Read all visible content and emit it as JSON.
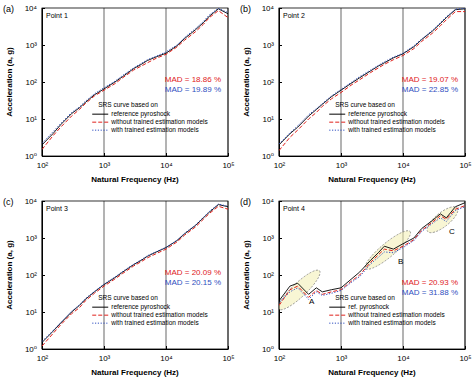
{
  "chart_data": [
    {
      "type": "line",
      "panel_label": "(a)",
      "title": "Point 1",
      "xlabel": "Natural Frequency (Hz)",
      "ylabel": "Acceleration (a, g)",
      "log": true,
      "grid": "x",
      "legend": "lower right",
      "legend_title": "SRS curve based on",
      "xlim": [
        100,
        100000
      ],
      "ylim": [
        1,
        10000
      ],
      "xticks": [
        {
          "value": 100,
          "label": "10²"
        },
        {
          "value": 1000,
          "label": "10³"
        },
        {
          "value": 10000,
          "label": "10⁴"
        },
        {
          "value": 100000,
          "label": "10⁵"
        }
      ],
      "yticks": [
        {
          "value": 1,
          "label": "10⁰"
        },
        {
          "value": 10,
          "label": "10¹"
        },
        {
          "value": 100,
          "label": "10²"
        },
        {
          "value": 1000,
          "label": "10³"
        },
        {
          "value": 10000,
          "label": "10⁴"
        }
      ],
      "x": [
        100,
        150,
        200,
        300,
        400,
        500,
        700,
        1000,
        1500,
        2000,
        3000,
        4000,
        5000,
        7000,
        10000,
        15000,
        20000,
        30000,
        40000,
        50000,
        70000,
        100000
      ],
      "series": [
        {
          "name": "reference pyroshock",
          "color": "#000000",
          "line_style": "solid",
          "values": [
            2,
            4,
            7,
            14,
            20,
            28,
            45,
            65,
            100,
            140,
            230,
            300,
            380,
            480,
            600,
            950,
            1500,
            2600,
            4000,
            6000,
            9500,
            7000
          ]
        },
        {
          "name": "without trained estimation models",
          "color": "#e0201b",
          "line_style": "dashed",
          "values": [
            1.5,
            3.5,
            6,
            12,
            18,
            26,
            42,
            60,
            90,
            130,
            210,
            270,
            330,
            440,
            560,
            880,
            1350,
            2300,
            3600,
            5500,
            8500,
            5500
          ]
        },
        {
          "name": "with trained estimation models",
          "color": "#2f4fc0",
          "line_style": "dotted",
          "values": [
            2.2,
            4.5,
            7.5,
            15,
            21,
            30,
            48,
            70,
            105,
            150,
            240,
            320,
            400,
            500,
            650,
            1000,
            1600,
            2800,
            4300,
            6500,
            9800,
            7500
          ]
        }
      ],
      "annotations": [
        {
          "text": "MAD = 18.86 %",
          "color": "#e0201b"
        },
        {
          "text": "MAD = 19.89 %",
          "color": "#2f4fc0"
        }
      ]
    },
    {
      "type": "line",
      "panel_label": "(b)",
      "title": "Point 2",
      "xlabel": "Natural Frequency (Hz)",
      "ylabel": "Acceleration (a, g)",
      "log": true,
      "grid": "x",
      "legend": "lower right",
      "legend_title": "SRS curve based on",
      "xlim": [
        100,
        100000
      ],
      "ylim": [
        1,
        10000
      ],
      "xticks": [
        {
          "value": 100,
          "label": "10²"
        },
        {
          "value": 1000,
          "label": "10³"
        },
        {
          "value": 10000,
          "label": "10⁴"
        },
        {
          "value": 100000,
          "label": "10⁵"
        }
      ],
      "yticks": [
        {
          "value": 1,
          "label": "10⁰"
        },
        {
          "value": 10,
          "label": "10¹"
        },
        {
          "value": 100,
          "label": "10²"
        },
        {
          "value": 1000,
          "label": "10³"
        },
        {
          "value": 10000,
          "label": "10⁴"
        }
      ],
      "x": [
        100,
        150,
        200,
        300,
        400,
        500,
        700,
        1000,
        1500,
        2000,
        3000,
        4000,
        5000,
        7000,
        10000,
        15000,
        20000,
        30000,
        40000,
        50000,
        70000,
        100000
      ],
      "series": [
        {
          "name": "reference pyroshock",
          "color": "#000000",
          "line_style": "solid",
          "values": [
            2,
            4,
            6,
            12,
            18,
            25,
            40,
            60,
            95,
            130,
            200,
            270,
            330,
            450,
            580,
            900,
            1400,
            2400,
            3800,
            5500,
            9000,
            9500
          ]
        },
        {
          "name": "without trained estimation models",
          "color": "#e0201b",
          "line_style": "dashed",
          "values": [
            1.4,
            3.2,
            5,
            10,
            15,
            22,
            35,
            52,
            85,
            115,
            180,
            240,
            300,
            400,
            520,
            800,
            1250,
            2100,
            3300,
            4800,
            8000,
            8000
          ]
        },
        {
          "name": "with trained estimation models",
          "color": "#2f4fc0",
          "line_style": "dotted",
          "values": [
            2.1,
            4.2,
            6.5,
            13,
            19,
            26,
            42,
            63,
            100,
            140,
            210,
            280,
            350,
            470,
            600,
            950,
            1450,
            2500,
            4000,
            5800,
            9300,
            9800
          ]
        }
      ],
      "annotations": [
        {
          "text": "MAD = 19.07 %",
          "color": "#e0201b"
        },
        {
          "text": "MAD = 22.85 %",
          "color": "#2f4fc0"
        }
      ]
    },
    {
      "type": "line",
      "panel_label": "(c)",
      "title": "Point 3",
      "xlabel": "Natural Frequency (Hz)",
      "ylabel": "Acceleration (a, g)",
      "log": true,
      "grid": "x",
      "legend": "lower right",
      "legend_title": "SRS curve based on",
      "xlim": [
        100,
        100000
      ],
      "ylim": [
        1,
        10000
      ],
      "xticks": [
        {
          "value": 100,
          "label": "10²"
        },
        {
          "value": 1000,
          "label": "10³"
        },
        {
          "value": 10000,
          "label": "10⁴"
        },
        {
          "value": 100000,
          "label": "10⁵"
        }
      ],
      "yticks": [
        {
          "value": 1,
          "label": "10⁰"
        },
        {
          "value": 10,
          "label": "10¹"
        },
        {
          "value": 100,
          "label": "10²"
        },
        {
          "value": 1000,
          "label": "10³"
        },
        {
          "value": 10000,
          "label": "10⁴"
        }
      ],
      "x": [
        100,
        150,
        200,
        300,
        400,
        500,
        700,
        1000,
        1500,
        2000,
        3000,
        4000,
        5000,
        7000,
        10000,
        15000,
        20000,
        30000,
        40000,
        50000,
        70000,
        100000
      ],
      "series": [
        {
          "name": "reference pyroshock",
          "color": "#000000",
          "line_style": "solid",
          "values": [
            1.5,
            3,
            5,
            10,
            15,
            22,
            35,
            55,
            85,
            120,
            190,
            250,
            320,
            420,
            550,
            850,
            1300,
            2200,
            3500,
            5000,
            8000,
            7000
          ]
        },
        {
          "name": "without trained estimation models",
          "color": "#e0201b",
          "line_style": "dashed",
          "values": [
            1.2,
            2.6,
            4.5,
            9,
            13,
            20,
            32,
            50,
            78,
            110,
            175,
            230,
            290,
            380,
            500,
            780,
            1200,
            2000,
            3200,
            4600,
            7200,
            6000
          ]
        },
        {
          "name": "with trained estimation models",
          "color": "#2f4fc0",
          "line_style": "dotted",
          "values": [
            1.6,
            3.1,
            5.2,
            10.5,
            15.5,
            23,
            36,
            57,
            88,
            125,
            195,
            260,
            330,
            430,
            560,
            870,
            1350,
            2250,
            3600,
            5200,
            8300,
            7200
          ]
        }
      ],
      "annotations": [
        {
          "text": "MAD = 20.09 %",
          "color": "#e0201b"
        },
        {
          "text": "MAD = 20.15 %",
          "color": "#2f4fc0"
        }
      ]
    },
    {
      "type": "line",
      "panel_label": "(d)",
      "title": "Point 4",
      "xlabel": "Natural Frequency (Hz)",
      "ylabel": "Acceleration (a, g)",
      "log": true,
      "grid": "x",
      "legend": "lower right",
      "legend_title": "SRS curve based on",
      "xlim": [
        100,
        100000
      ],
      "ylim": [
        1,
        10000
      ],
      "xticks": [
        {
          "value": 100,
          "label": "10²"
        },
        {
          "value": 1000,
          "label": "10³"
        },
        {
          "value": 10000,
          "label": "10⁴"
        },
        {
          "value": 100000,
          "label": "10⁵"
        }
      ],
      "yticks": [
        {
          "value": 1,
          "label": "10⁰"
        },
        {
          "value": 10,
          "label": "10¹"
        },
        {
          "value": 100,
          "label": "10²"
        },
        {
          "value": 1000,
          "label": "10³"
        },
        {
          "value": 10000,
          "label": "10⁴"
        }
      ],
      "x": [
        100,
        150,
        200,
        300,
        400,
        500,
        700,
        1000,
        1500,
        2000,
        3000,
        4000,
        5000,
        7000,
        10000,
        15000,
        20000,
        30000,
        40000,
        50000,
        70000,
        100000
      ],
      "series": [
        {
          "name": "ref. pyroshock",
          "color": "#000000",
          "line_style": "solid",
          "values": [
            20,
            50,
            60,
            30,
            45,
            35,
            40,
            45,
            80,
            120,
            250,
            400,
            600,
            500,
            700,
            1000,
            1800,
            3000,
            4500,
            3500,
            7000,
            9000
          ]
        },
        {
          "name": "without trained estimation models",
          "color": "#e0201b",
          "line_style": "dashed",
          "values": [
            15,
            40,
            50,
            25,
            38,
            30,
            35,
            40,
            70,
            100,
            220,
            350,
            500,
            450,
            600,
            900,
            1600,
            2700,
            4000,
            3200,
            6000,
            7500
          ]
        },
        {
          "name": "with trained estimation models",
          "color": "#2f4fc0",
          "line_style": "dotted",
          "values": [
            18,
            35,
            45,
            22,
            35,
            28,
            32,
            38,
            65,
            90,
            200,
            300,
            420,
            400,
            550,
            850,
            1500,
            2500,
            3500,
            2800,
            5500,
            7000
          ]
        }
      ],
      "annotations": [
        {
          "text": "MAD = 20.93 %",
          "color": "#e0201b"
        },
        {
          "text": "MAD = 31.88 %",
          "color": "#2f4fc0"
        }
      ],
      "regions": [
        {
          "label": "A",
          "x": [
            100,
            450
          ],
          "y": [
            12,
            130
          ]
        },
        {
          "label": "B",
          "x": [
            2500,
            13000
          ],
          "y": [
            150,
            1500
          ]
        },
        {
          "label": "C",
          "x": [
            25000,
            75000
          ],
          "y": [
            1500,
            6500
          ]
        }
      ]
    }
  ]
}
